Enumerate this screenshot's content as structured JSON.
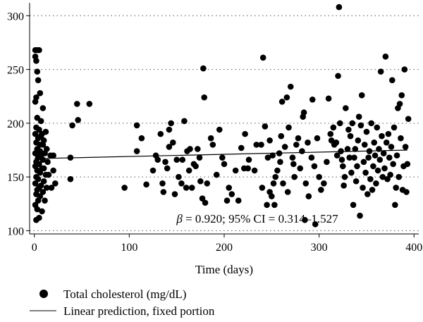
{
  "chart_data": {
    "type": "scatter",
    "xlabel": "Time (days)",
    "ylabel": "",
    "xlim": [
      -5,
      405
    ],
    "ylim": [
      97,
      312
    ],
    "x_ticks": [
      0,
      100,
      200,
      300,
      400
    ],
    "y_ticks": [
      100,
      150,
      200,
      250,
      300
    ],
    "grid": "horizontal dotted",
    "annotation": {
      "beta_symbol": "β",
      "text": " = 0.920; 95% CI = 0.314–1.527"
    },
    "legend": {
      "position": "bottom",
      "items": [
        {
          "name": "Total cholesterol (mg/dL)",
          "marker": "circle"
        },
        {
          "name": "Linear prediction, fixed portion",
          "marker": "line"
        }
      ]
    },
    "series": [
      {
        "name": "Total cholesterol (mg/dL)",
        "kind": "scatter",
        "points": [
          [
            1,
            268
          ],
          [
            3,
            268
          ],
          [
            5,
            268
          ],
          [
            1,
            262
          ],
          [
            2,
            258
          ],
          [
            3,
            248
          ],
          [
            4,
            240
          ],
          [
            6,
            228
          ],
          [
            2,
            224
          ],
          [
            1,
            220
          ],
          [
            9,
            214
          ],
          [
            3,
            205
          ],
          [
            7,
            202
          ],
          [
            2,
            196
          ],
          [
            5,
            194
          ],
          [
            1,
            190
          ],
          [
            8,
            190
          ],
          [
            12,
            192
          ],
          [
            4,
            186
          ],
          [
            10,
            184
          ],
          [
            2,
            182
          ],
          [
            6,
            180
          ],
          [
            3,
            176
          ],
          [
            1,
            172
          ],
          [
            7,
            170
          ],
          [
            11,
            172
          ],
          [
            4,
            168
          ],
          [
            9,
            166
          ],
          [
            2,
            164
          ],
          [
            5,
            162
          ],
          [
            14,
            164
          ],
          [
            1,
            160
          ],
          [
            8,
            158
          ],
          [
            3,
            156
          ],
          [
            6,
            154
          ],
          [
            12,
            152
          ],
          [
            2,
            150
          ],
          [
            4,
            148
          ],
          [
            10,
            146
          ],
          [
            1,
            144
          ],
          [
            7,
            142
          ],
          [
            5,
            140
          ],
          [
            3,
            138
          ],
          [
            13,
            140
          ],
          [
            9,
            136
          ],
          [
            2,
            134
          ],
          [
            6,
            132
          ],
          [
            4,
            128
          ],
          [
            11,
            128
          ],
          [
            1,
            124
          ],
          [
            3,
            120
          ],
          [
            8,
            118
          ],
          [
            5,
            112
          ],
          [
            2,
            110
          ],
          [
            7,
            188
          ],
          [
            9,
            180
          ],
          [
            6,
            174
          ],
          [
            13,
            176
          ],
          [
            4,
            174
          ],
          [
            10,
            158
          ],
          [
            15,
            152
          ],
          [
            17,
            170
          ],
          [
            20,
            156
          ],
          [
            18,
            140
          ],
          [
            20,
            170
          ],
          [
            22,
            144
          ],
          [
            38,
            148
          ],
          [
            38,
            168
          ],
          [
            40,
            198
          ],
          [
            45,
            218
          ],
          [
            46,
            203
          ],
          [
            58,
            218
          ],
          [
            95,
            140
          ],
          [
            108,
            198
          ],
          [
            108,
            174
          ],
          [
            113,
            186
          ],
          [
            118,
            143
          ],
          [
            125,
            156
          ],
          [
            128,
            170
          ],
          [
            130,
            166
          ],
          [
            133,
            190
          ],
          [
            135,
            144
          ],
          [
            136,
            136
          ],
          [
            138,
            164
          ],
          [
            140,
            158
          ],
          [
            142,
            178
          ],
          [
            142,
            194
          ],
          [
            144,
            200
          ],
          [
            146,
            182
          ],
          [
            148,
            134
          ],
          [
            150,
            166
          ],
          [
            152,
            150
          ],
          [
            155,
            144
          ],
          [
            156,
            166
          ],
          [
            158,
            202
          ],
          [
            160,
            140
          ],
          [
            161,
            174
          ],
          [
            163,
            156
          ],
          [
            164,
            176
          ],
          [
            166,
            140
          ],
          [
            168,
            162
          ],
          [
            170,
            160
          ],
          [
            172,
            176
          ],
          [
            174,
            168
          ],
          [
            175,
            146
          ],
          [
            177,
            130
          ],
          [
            178,
            251
          ],
          [
            179,
            224
          ],
          [
            180,
            126
          ],
          [
            182,
            144
          ],
          [
            186,
            186
          ],
          [
            188,
            180
          ],
          [
            192,
            152
          ],
          [
            195,
            194
          ],
          [
            198,
            168
          ],
          [
            200,
            162
          ],
          [
            203,
            128
          ],
          [
            205,
            140
          ],
          [
            208,
            134
          ],
          [
            212,
            156
          ],
          [
            215,
            128
          ],
          [
            218,
            177
          ],
          [
            221,
            158
          ],
          [
            222,
            190
          ],
          [
            225,
            158
          ],
          [
            226,
            166
          ],
          [
            232,
            156
          ],
          [
            234,
            180
          ],
          [
            239,
            180
          ],
          [
            240,
            140
          ],
          [
            241,
            261
          ],
          [
            243,
            197
          ],
          [
            245,
            124
          ],
          [
            246,
            168
          ],
          [
            248,
            184
          ],
          [
            248,
            136
          ],
          [
            250,
            132
          ],
          [
            251,
            170
          ],
          [
            252,
            144
          ],
          [
            253,
            124
          ],
          [
            254,
            150
          ],
          [
            256,
            156
          ],
          [
            258,
            172
          ],
          [
            259,
            164
          ],
          [
            260,
            188
          ],
          [
            261,
            220
          ],
          [
            262,
            144
          ],
          [
            264,
            178
          ],
          [
            266,
            224
          ],
          [
            267,
            136
          ],
          [
            268,
            196
          ],
          [
            270,
            234
          ],
          [
            272,
            168
          ],
          [
            273,
            162
          ],
          [
            274,
            150
          ],
          [
            276,
            180
          ],
          [
            278,
            186
          ],
          [
            280,
            158
          ],
          [
            282,
            174
          ],
          [
            283,
            206
          ],
          [
            284,
            210
          ],
          [
            285,
            110
          ],
          [
            286,
            144
          ],
          [
            288,
            182
          ],
          [
            289,
            132
          ],
          [
            292,
            168
          ],
          [
            293,
            222
          ],
          [
            295,
            160
          ],
          [
            296,
            106
          ],
          [
            298,
            186
          ],
          [
            300,
            150
          ],
          [
            302,
            138
          ],
          [
            305,
            144
          ],
          [
            308,
            164
          ],
          [
            310,
            223
          ],
          [
            312,
            190
          ],
          [
            313,
            184
          ],
          [
            315,
            196
          ],
          [
            316,
            180
          ],
          [
            318,
            182
          ],
          [
            319,
            170
          ],
          [
            320,
            244
          ],
          [
            321,
            308
          ],
          [
            322,
            200
          ],
          [
            323,
            174
          ],
          [
            324,
            166
          ],
          [
            325,
            160
          ],
          [
            326,
            142
          ],
          [
            327,
            150
          ],
          [
            328,
            214
          ],
          [
            330,
            176
          ],
          [
            331,
            194
          ],
          [
            332,
            168
          ],
          [
            333,
            188
          ],
          [
            334,
            154
          ],
          [
            335,
            200
          ],
          [
            336,
            124
          ],
          [
            337,
            168
          ],
          [
            338,
            176
          ],
          [
            339,
            146
          ],
          [
            340,
            160
          ],
          [
            341,
            184
          ],
          [
            342,
            206
          ],
          [
            343,
            114
          ],
          [
            344,
            198
          ],
          [
            345,
            226
          ],
          [
            346,
            140
          ],
          [
            347,
            164
          ],
          [
            348,
            180
          ],
          [
            349,
            154
          ],
          [
            350,
            192
          ],
          [
            351,
            134
          ],
          [
            352,
            168
          ],
          [
            353,
            174
          ],
          [
            354,
            148
          ],
          [
            355,
            200
          ],
          [
            356,
            138
          ],
          [
            357,
            160
          ],
          [
            358,
            182
          ],
          [
            359,
            170
          ],
          [
            360,
            144
          ],
          [
            361,
            196
          ],
          [
            362,
            156
          ],
          [
            363,
            176
          ],
          [
            364,
            166
          ],
          [
            365,
            248
          ],
          [
            366,
            188
          ],
          [
            367,
            150
          ],
          [
            368,
            172
          ],
          [
            369,
            158
          ],
          [
            370,
            262
          ],
          [
            371,
            182
          ],
          [
            372,
            148
          ],
          [
            373,
            190
          ],
          [
            374,
            168
          ],
          [
            375,
            152
          ],
          [
            376,
            178
          ],
          [
            377,
            240
          ],
          [
            378,
            162
          ],
          [
            379,
            196
          ],
          [
            380,
            124
          ],
          [
            381,
            140
          ],
          [
            382,
            170
          ],
          [
            383,
            214
          ],
          [
            384,
            150
          ],
          [
            385,
            218
          ],
          [
            386,
            186
          ],
          [
            387,
            226
          ],
          [
            388,
            138
          ],
          [
            389,
            160
          ],
          [
            390,
            250
          ],
          [
            391,
            178
          ],
          [
            392,
            136
          ],
          [
            393,
            162
          ],
          [
            394,
            204
          ]
        ]
      },
      {
        "name": "Linear prediction, fixed portion",
        "kind": "line",
        "points": [
          [
            0,
            167
          ],
          [
            393,
            175
          ]
        ]
      }
    ]
  }
}
